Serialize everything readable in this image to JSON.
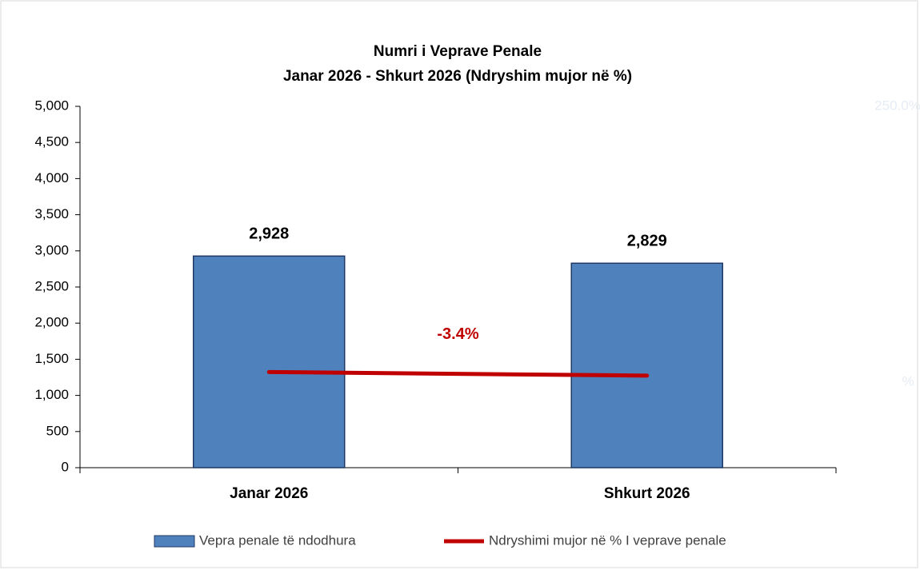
{
  "chart_data": {
    "type": "bar",
    "title": "Numri i Veprave Penale",
    "subtitle": "Janar 2026 - Shkurt 2026 (Ndryshim mujor në %)",
    "categories": [
      "Janar 2026",
      "Shkurt 2026"
    ],
    "series": [
      {
        "name": "Vepra penale të ndodhura",
        "type": "bar",
        "color": "#4f81bd",
        "values": [
          2928,
          2829
        ],
        "value_labels": [
          "2,928",
          "2,829"
        ]
      },
      {
        "name": "Ndryshimi mujor në % I veprave penale",
        "type": "line",
        "axis": "y2",
        "color": "#c00000",
        "values": [
          0,
          -3.4
        ],
        "value_labels": [
          null,
          "-3.4%"
        ]
      }
    ],
    "ylim": [
      0,
      5000
    ],
    "yticks": [
      0,
      500,
      {
        "value": 1000,
        "label": "1,000"
      },
      {
        "value": 1500,
        "label": "1,500"
      },
      {
        "value": 2000,
        "label": "2,000"
      },
      {
        "value": 2500,
        "label": "2,500"
      },
      {
        "value": 3000,
        "label": "3,000"
      },
      {
        "value": 3500,
        "label": "3,500"
      },
      {
        "value": 4000,
        "label": "4,000"
      },
      {
        "value": 4500,
        "label": "4,500"
      },
      {
        "value": 5000,
        "label": "5,000"
      }
    ],
    "y2lim": [
      -90,
      250
    ],
    "y2ticks": [
      {
        "value": 250,
        "label": "250.0%"
      }
    ],
    "y2label": "%",
    "legend": "bottom"
  }
}
